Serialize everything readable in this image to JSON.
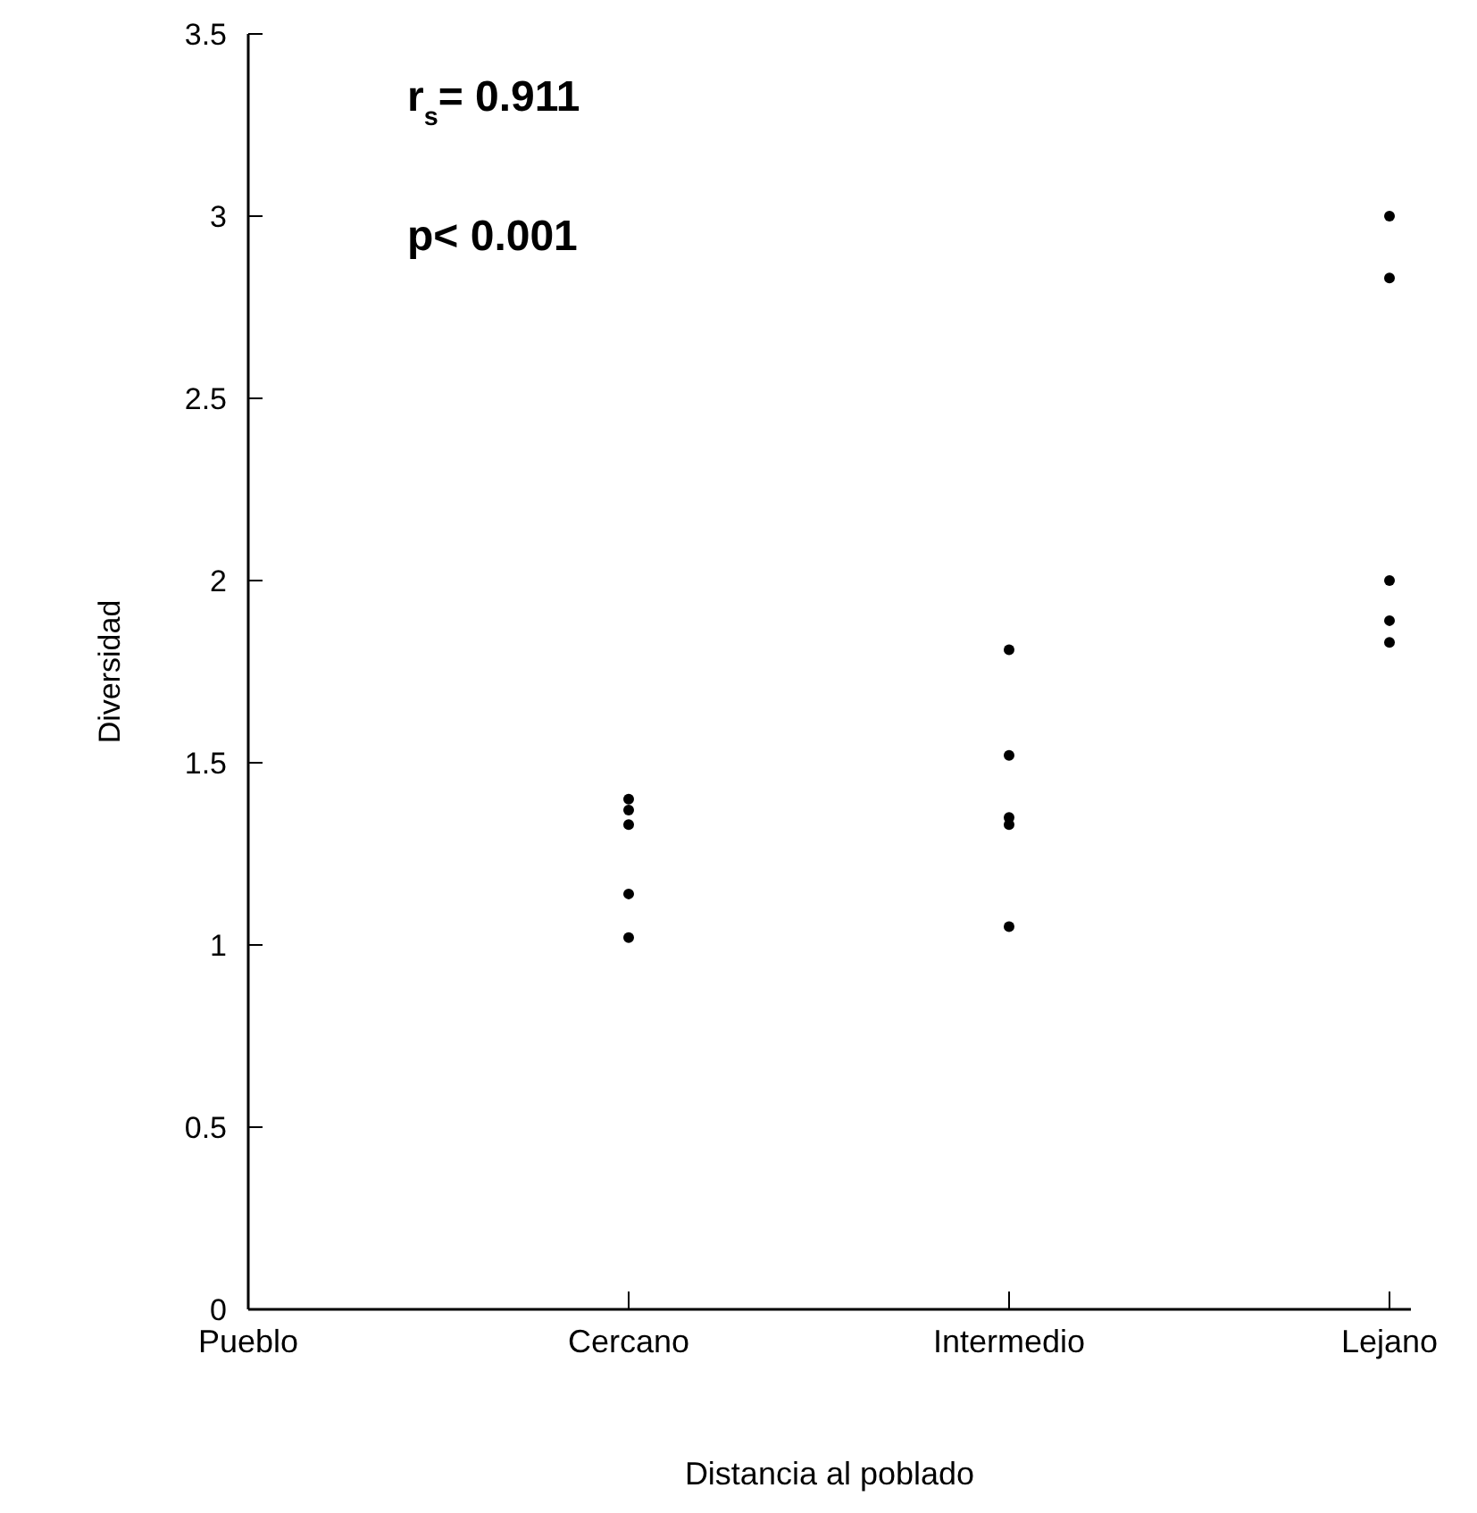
{
  "chart_data": {
    "type": "scatter",
    "xlabel": "Distancia al poblado",
    "ylabel": "Diversidad",
    "categories": [
      "Pueblo",
      "Cercano",
      "Intermedio",
      "Lejano"
    ],
    "series": [
      {
        "color": "#000000",
        "x": [
          "Cercano",
          "Cercano",
          "Cercano",
          "Cercano",
          "Cercano",
          "Intermedio",
          "Intermedio",
          "Intermedio",
          "Intermedio",
          "Intermedio",
          "Lejano",
          "Lejano",
          "Lejano",
          "Lejano",
          "Lejano"
        ],
        "values": [
          1.4,
          1.37,
          1.33,
          1.14,
          1.02,
          1.81,
          1.52,
          1.35,
          1.33,
          1.05,
          3.0,
          2.83,
          2.0,
          1.89,
          1.83
        ]
      }
    ],
    "ylim": [
      0,
      3.5
    ],
    "yticks": [
      0,
      {
        "value": 0.5,
        "label": "0.5"
      },
      1,
      {
        "value": 1.5,
        "label": "1.5"
      },
      2,
      {
        "value": 2.5,
        "label": "2.5"
      },
      3,
      {
        "value": 3.5,
        "label": "3.5"
      }
    ],
    "annotations": [
      "r$_{s}$= 0.911",
      "p< 0.001"
    ],
    "grid": false,
    "marker": "circle"
  }
}
